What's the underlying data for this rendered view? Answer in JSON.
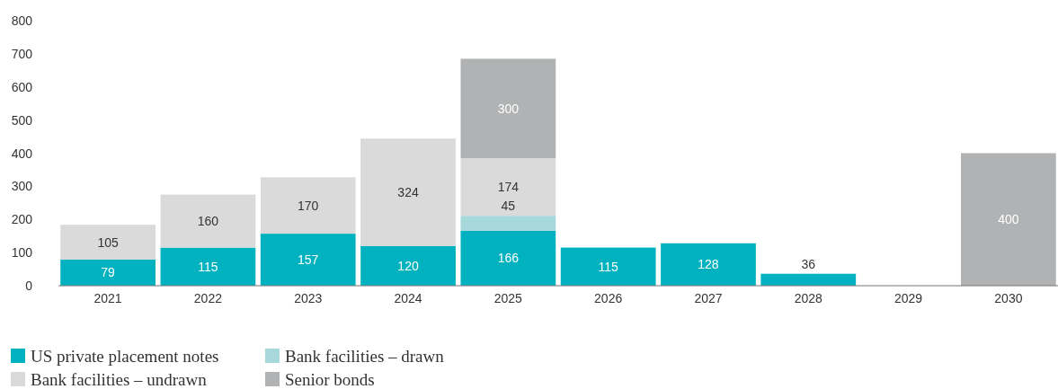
{
  "chart_data": {
    "type": "bar",
    "stacked": true,
    "categories": [
      "2021",
      "2022",
      "2023",
      "2024",
      "2025",
      "2026",
      "2027",
      "2028",
      "2029",
      "2030"
    ],
    "series": [
      {
        "name": "US private placement notes",
        "color": "#00b2c0",
        "values": [
          79,
          115,
          157,
          120,
          166,
          115,
          128,
          36,
          null,
          null
        ]
      },
      {
        "name": "Bank facilities – drawn",
        "color": "#a7d8dc",
        "values": [
          null,
          null,
          null,
          null,
          45,
          null,
          null,
          null,
          null,
          null
        ]
      },
      {
        "name": "Bank facilities – undrawn",
        "color": "#d9dad9",
        "values": [
          105,
          160,
          170,
          324,
          174,
          null,
          null,
          null,
          null,
          null
        ]
      },
      {
        "name": "Senior bonds",
        "color": "#b1b2b3",
        "values": [
          null,
          null,
          null,
          null,
          300,
          null,
          null,
          null,
          null,
          400
        ]
      }
    ],
    "ylim": [
      0,
      800
    ],
    "yticks": [
      0,
      100,
      200,
      300,
      400,
      500,
      600,
      700,
      800
    ],
    "grid": false,
    "legend": "bottom",
    "data_labels": true
  }
}
